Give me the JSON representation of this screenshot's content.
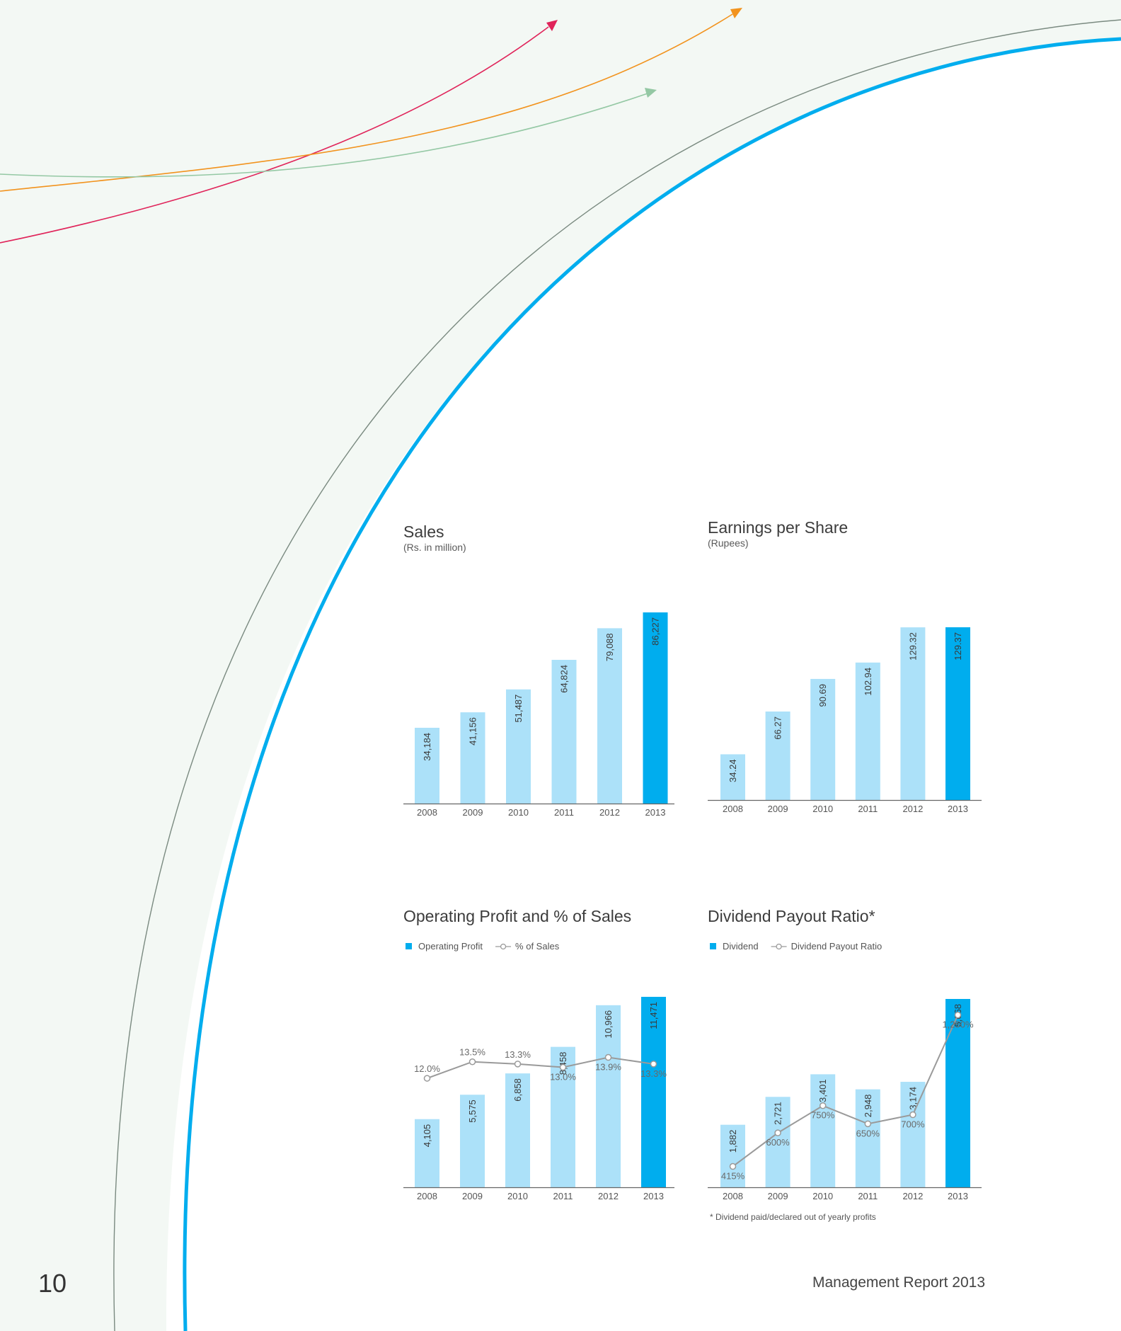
{
  "page": {
    "number": "10",
    "footer": "Management Report 2013"
  },
  "colors": {
    "bar": "#ace1f9",
    "bar_highlight": "#00adee",
    "line": "#9a9a9a",
    "axis": "#666666",
    "arc_blue": "#00adee",
    "arc_grey": "#7a8a80",
    "bg_tint": "#f3f8f4",
    "arrow_red": "#e0245a",
    "arrow_orange": "#f2931e",
    "arrow_green": "#94c8a4"
  },
  "chart_data": [
    {
      "type": "bar",
      "title": "Sales",
      "subtitle": "(Rs. in million)",
      "categories": [
        "2008",
        "2009",
        "2010",
        "2011",
        "2012",
        "2013"
      ],
      "values": [
        34184,
        41156,
        51487,
        64824,
        79088,
        86227
      ],
      "value_labels": [
        "34,184",
        "41,156",
        "51,487",
        "64,824",
        "79,088",
        "86,227"
      ],
      "highlight_index": 5,
      "ylim": [
        0,
        86227
      ]
    },
    {
      "type": "bar",
      "title": "Earnings per Share",
      "subtitle": "(Rupees)",
      "categories": [
        "2008",
        "2009",
        "2010",
        "2011",
        "2012",
        "2013"
      ],
      "values": [
        34.24,
        66.27,
        90.69,
        102.94,
        129.32,
        129.37
      ],
      "value_labels": [
        "34.24",
        "66.27",
        "90.69",
        "102.94",
        "129.32",
        "129.37"
      ],
      "highlight_index": 5,
      "ylim": [
        0,
        129.37
      ]
    },
    {
      "type": "bar",
      "title": "Operating Profit and % of Sales",
      "subtitle": "",
      "legend": {
        "bar": "Operating Profit",
        "line": "% of Sales"
      },
      "categories": [
        "2008",
        "2009",
        "2010",
        "2011",
        "2012",
        "2013"
      ],
      "values": [
        4105,
        5575,
        6858,
        8458,
        10966,
        11471
      ],
      "value_labels": [
        "4,105",
        "5,575",
        "6,858",
        "8,458",
        "10,966",
        "11,471"
      ],
      "line_values": [
        12.0,
        13.5,
        13.3,
        13.0,
        13.9,
        13.3
      ],
      "line_labels": [
        "12.0%",
        "13.5%",
        "13.3%",
        "13.0%",
        "13.9%",
        "13.3%"
      ],
      "line_label_pos": [
        "above",
        "above",
        "above",
        "below",
        "below",
        "below"
      ],
      "line_ylim": [
        2.1,
        19.4
      ],
      "highlight_index": 5,
      "ylim": [
        0,
        11471
      ]
    },
    {
      "type": "bar",
      "title": "Dividend Payout Ratio*",
      "subtitle": "",
      "legend": {
        "bar": "Dividend",
        "line": "Dividend Payout Ratio"
      },
      "categories": [
        "2008",
        "2009",
        "2010",
        "2011",
        "2012",
        "2013"
      ],
      "values": [
        1882,
        2721,
        3401,
        2948,
        3174,
        5668
      ],
      "value_labels": [
        "1,882",
        "2,721",
        "3,401",
        "2,948",
        "3,174",
        "5,668"
      ],
      "line_values": [
        415,
        600,
        750,
        650,
        700,
        1250
      ],
      "line_labels": [
        "415%",
        "600%",
        "750%",
        "650%",
        "700%",
        "1,250%"
      ],
      "line_label_pos": [
        "below",
        "below",
        "below",
        "below",
        "below",
        "below"
      ],
      "line_ylim": [
        300,
        1350
      ],
      "highlight_index": 5,
      "ylim": [
        0,
        5668
      ],
      "footnote": "* Dividend paid/declared out of yearly profits"
    }
  ]
}
